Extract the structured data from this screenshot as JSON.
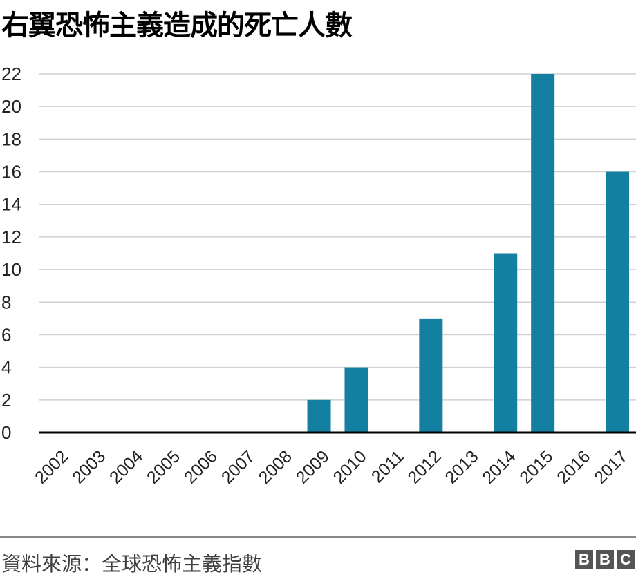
{
  "chart_data": {
    "type": "bar",
    "title": "右翼恐怖主義造成的死亡人數",
    "xlabel": "",
    "ylabel": "",
    "categories": [
      "2002",
      "2003",
      "2004",
      "2005",
      "2006",
      "2007",
      "2008",
      "2009",
      "2010",
      "2011",
      "2012",
      "2013",
      "2014",
      "2015",
      "2016",
      "2017"
    ],
    "values": [
      0,
      0,
      0,
      0,
      0,
      0,
      0,
      2,
      4,
      0,
      7,
      0,
      11,
      22,
      0,
      16
    ],
    "ylim": [
      0,
      22
    ],
    "yticks": [
      0,
      2,
      4,
      6,
      8,
      10,
      12,
      14,
      16,
      18,
      20,
      22
    ],
    "grid": true,
    "bar_color": "#1380A1"
  },
  "footer": {
    "source": "資料來源：全球恐怖主義指數",
    "logo": "BBC"
  }
}
